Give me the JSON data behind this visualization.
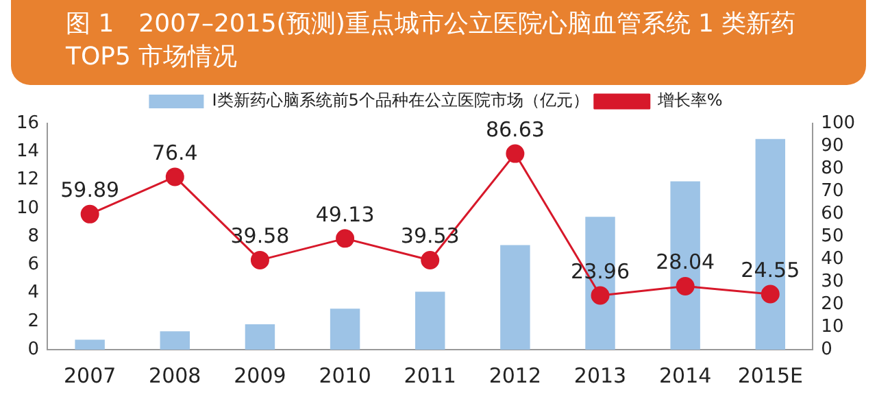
{
  "chart_data": {
    "type": "bar",
    "title": "图 1　2007–2015(预测)重点城市公立医院心脑血管系统 1 类新药 TOP5 市场情况",
    "categories": [
      "2007",
      "2008",
      "2009",
      "2010",
      "2011",
      "2012",
      "2013",
      "2014",
      "2015E"
    ],
    "series": [
      {
        "name": "I类新药心脑系统前5个品种在公立医院市场（亿元）",
        "color": "#9dc3e6",
        "values": [
          0.7,
          1.3,
          1.8,
          2.9,
          4.1,
          7.4,
          9.4,
          11.9,
          14.9
        ]
      },
      {
        "name": "增长率%",
        "type": "line",
        "axis": "y2",
        "color": "#d7182a",
        "values": [
          59.89,
          76.4,
          39.58,
          49.13,
          39.53,
          86.63,
          23.96,
          28.04,
          24.55
        ],
        "value_labels": [
          "59.89",
          "76.4",
          "39.58",
          "49.13",
          "39.53",
          "86.63",
          "23.96",
          "28.04",
          "24.55"
        ]
      }
    ],
    "ylim": [
      0,
      16
    ],
    "yticks": [
      0,
      2,
      4,
      6,
      8,
      10,
      12,
      14,
      16
    ],
    "y2lim": [
      0,
      100
    ],
    "y2ticks": [
      0,
      10,
      20,
      30,
      40,
      50,
      60,
      70,
      80,
      90,
      100
    ],
    "grid": false,
    "legend": "top",
    "marker": "circle"
  }
}
